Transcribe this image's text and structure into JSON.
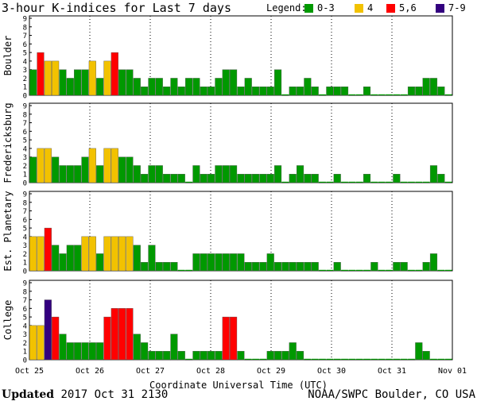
{
  "title": "3-hour K-indices for Last 7 days",
  "legend": {
    "label": "Legend:",
    "items": [
      {
        "label": "0-3",
        "color": "#009900"
      },
      {
        "label": "4",
        "color": "#f2c200"
      },
      {
        "label": "5,6",
        "color": "#ff0000"
      },
      {
        "label": "7-9",
        "color": "#33007f"
      }
    ]
  },
  "chart_data": {
    "type": "bar",
    "xlabel": "Coordinate Universal Time (UTC)",
    "x_ticks": [
      "Oct 25",
      "Oct 26",
      "Oct 27",
      "Oct 28",
      "Oct 29",
      "Oct 30",
      "Oct 31",
      "Nov 01"
    ],
    "ylim": [
      0,
      9
    ],
    "y_ticks": [
      "0",
      "1",
      "2",
      "3",
      "4",
      "5",
      "6",
      "7",
      "8",
      "9"
    ],
    "panels": [
      {
        "name": "Boulder",
        "values": [
          3,
          5,
          4,
          4,
          3,
          2,
          3,
          3,
          4,
          2,
          4,
          5,
          3,
          3,
          2,
          1,
          2,
          2,
          1,
          2,
          1,
          2,
          2,
          1,
          1,
          2,
          3,
          3,
          1,
          2,
          1,
          1,
          1,
          3,
          0,
          1,
          1,
          2,
          1,
          0,
          1,
          1,
          1,
          0,
          0,
          1,
          0,
          0,
          0,
          0,
          0,
          1,
          1,
          2,
          2,
          1,
          0
        ]
      },
      {
        "name": "Fredericksburg",
        "values": [
          3,
          4,
          4,
          3,
          2,
          2,
          2,
          3,
          4,
          2,
          4,
          4,
          3,
          3,
          2,
          1,
          2,
          2,
          1,
          1,
          1,
          0,
          2,
          1,
          1,
          2,
          2,
          2,
          1,
          1,
          1,
          1,
          1,
          2,
          0,
          1,
          2,
          1,
          1,
          0,
          0,
          1,
          0,
          0,
          0,
          1,
          0,
          0,
          0,
          1,
          0,
          0,
          0,
          0,
          2,
          1,
          0
        ]
      },
      {
        "name": "Est. Planetary",
        "values": [
          4,
          4,
          5,
          3,
          2,
          3,
          3,
          4,
          4,
          2,
          4,
          4,
          4,
          4,
          3,
          1,
          3,
          1,
          1,
          1,
          0,
          0,
          2,
          2,
          2,
          2,
          2,
          2,
          2,
          1,
          1,
          1,
          2,
          1,
          1,
          1,
          1,
          1,
          1,
          0,
          0,
          1,
          0,
          0,
          0,
          0,
          1,
          0,
          0,
          1,
          1,
          0,
          0,
          1,
          2,
          0,
          0
        ]
      },
      {
        "name": "College",
        "values": [
          4,
          4,
          7,
          5,
          3,
          2,
          2,
          2,
          2,
          2,
          5,
          6,
          6,
          6,
          3,
          2,
          1,
          1,
          1,
          3,
          1,
          0,
          1,
          1,
          1,
          1,
          5,
          5,
          1,
          0,
          0,
          0,
          1,
          1,
          1,
          2,
          1,
          0,
          0,
          0,
          0,
          0,
          0,
          0,
          0,
          0,
          0,
          0,
          0,
          0,
          0,
          0,
          2,
          1,
          0,
          0,
          0
        ]
      }
    ]
  },
  "footer": {
    "updated_label": "Updated",
    "updated_value": "2017 Oct 31 2130",
    "source": "NOAA/SWPC Boulder, CO USA"
  }
}
